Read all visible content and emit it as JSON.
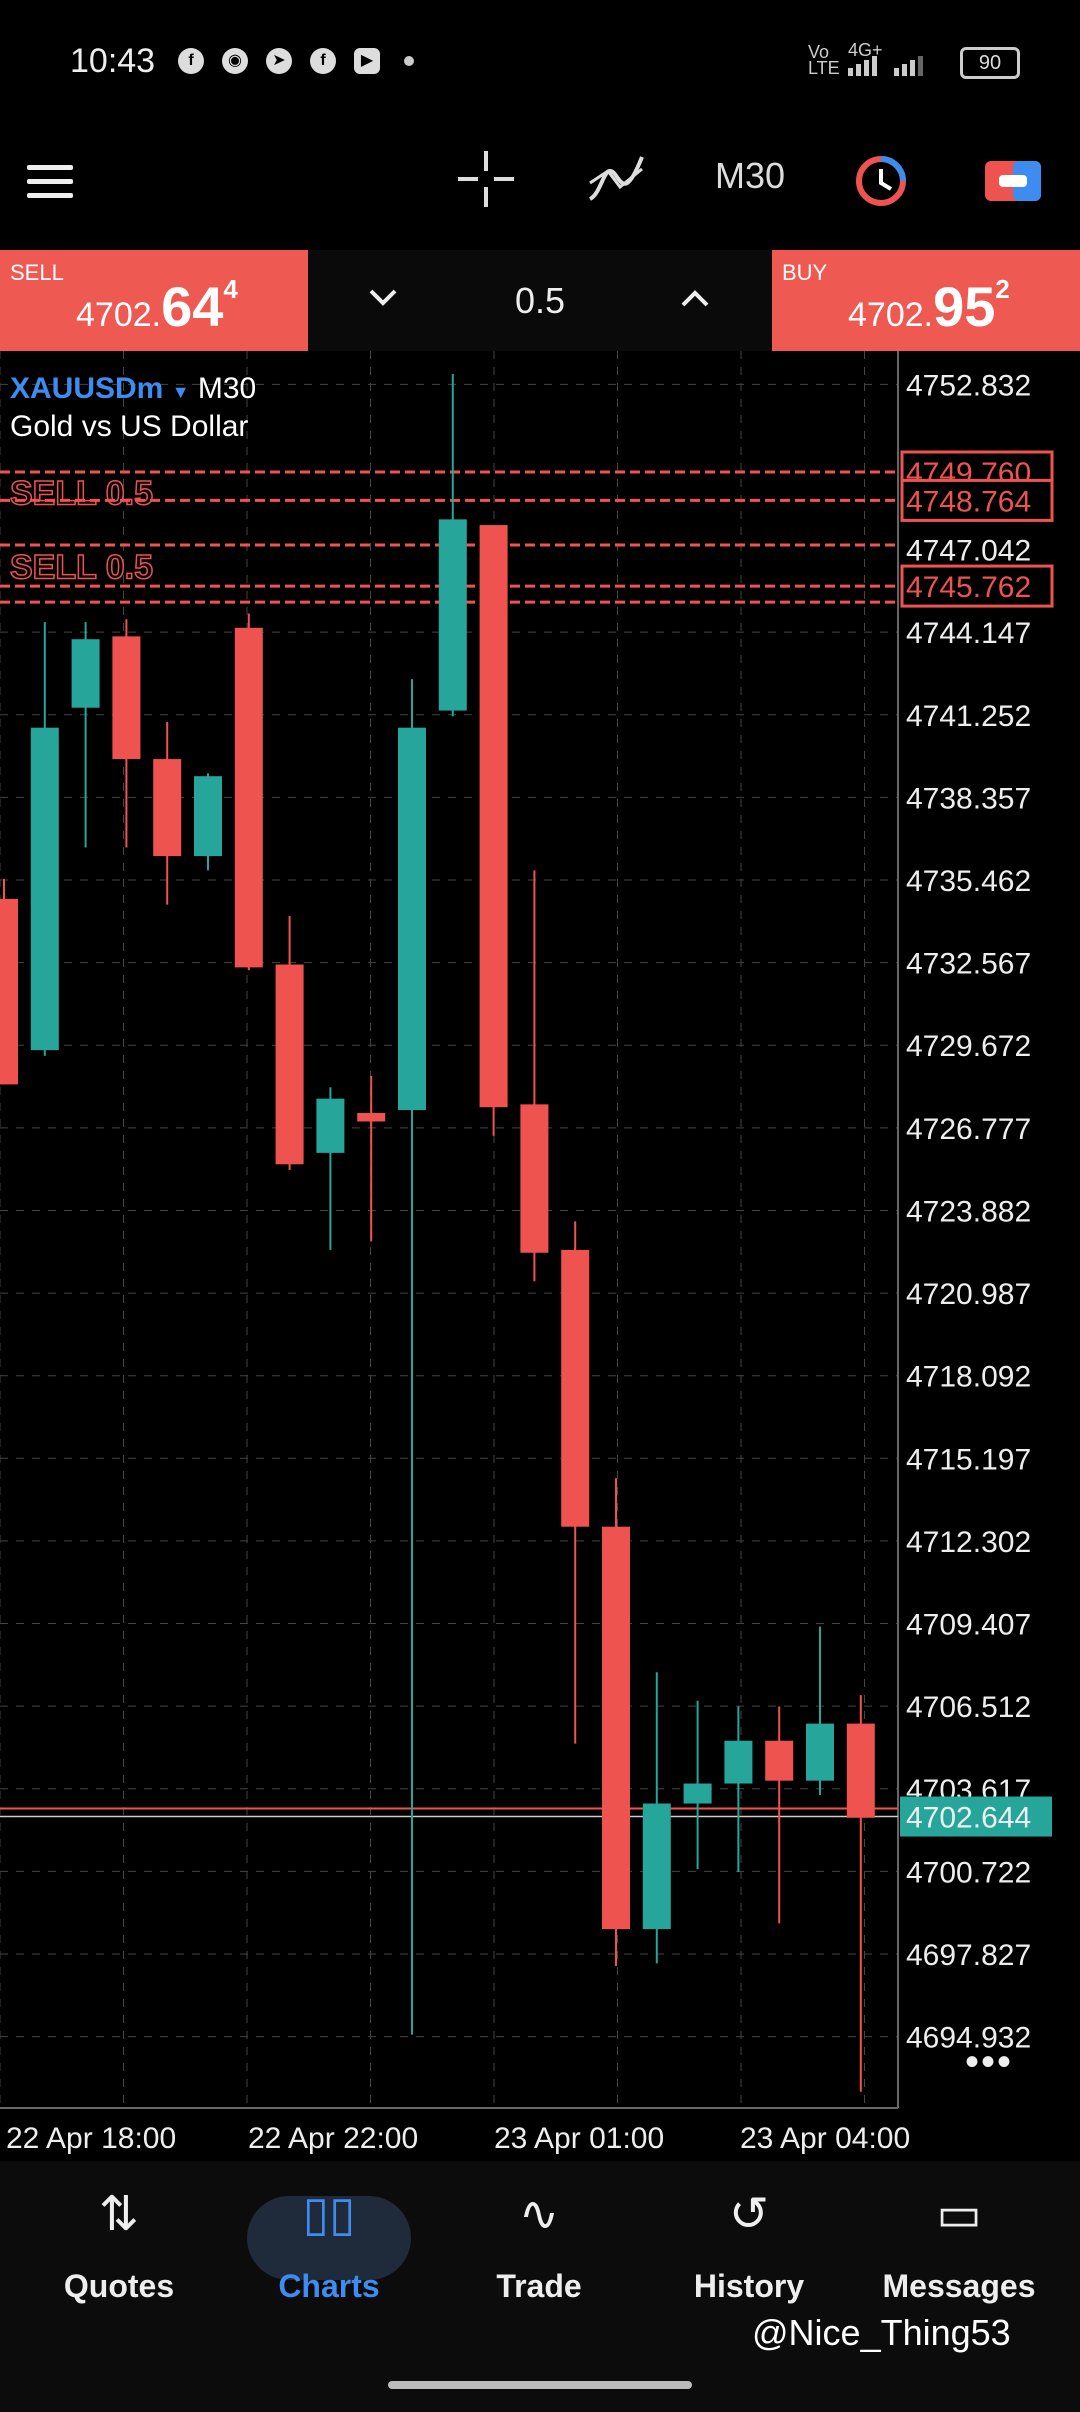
{
  "status_bar": {
    "time": "10:43",
    "battery": "90",
    "net_label": "4G+",
    "app_icons": [
      "facebook-icon",
      "snapchat-icon",
      "telegram-icon",
      "facebook-icon",
      "youtube-icon",
      "dot-icon"
    ]
  },
  "toolbar": {
    "timeframe": "M30",
    "icons": [
      "menu-icon",
      "crosshair-icon",
      "indicators-icon",
      "timeframe",
      "objects-icon",
      "trade-toggle-icon"
    ]
  },
  "trade_bar": {
    "sell_label": "SELL",
    "sell_price_small": "4702.",
    "sell_price_big": "64",
    "sell_price_sup": "4",
    "buy_label": "BUY",
    "buy_price_small": "4702.",
    "buy_price_big": "95",
    "buy_price_sup": "2",
    "lot": "0.5"
  },
  "chart": {
    "symbol": "XAUUSDm",
    "timeframe": "M30",
    "description": "Gold vs US Dollar",
    "current_price": "4702.644",
    "more": "•••",
    "colors": {
      "up": "#26a69a",
      "down": "#ef5350",
      "grid": "#444444",
      "bg": "#000000"
    }
  },
  "chart_data": {
    "type": "candlestick",
    "title": "XAUUSDm M30",
    "ylim": [
      4692.5,
      4754.0
    ],
    "y_ticks": [
      "4752.832",
      "4749.760",
      "4748.764",
      "4747.042",
      "4745.762",
      "4744.147",
      "4741.252",
      "4738.357",
      "4735.462",
      "4732.567",
      "4729.672",
      "4726.777",
      "4723.882",
      "4720.987",
      "4718.092",
      "4715.197",
      "4712.302",
      "4709.407",
      "4706.512",
      "4703.617",
      "4702.644",
      "4700.722",
      "4697.827",
      "4694.932"
    ],
    "x_ticks": [
      "22 Apr 18:00",
      "22 Apr 22:00",
      "23 Apr 01:00",
      "23 Apr 04:00"
    ],
    "order_lines": [
      4749.76,
      4748.764,
      4747.2,
      4745.762,
      4745.2
    ],
    "order_labels": [
      "SELL 0.5",
      "SELL 0.5"
    ],
    "candles": [
      {
        "o": 4734.8,
        "h": 4735.5,
        "l": 4728.3,
        "c": 4728.3
      },
      {
        "o": 4729.5,
        "h": 4744.5,
        "l": 4729.3,
        "c": 4740.8
      },
      {
        "o": 4741.5,
        "h": 4744.5,
        "l": 4736.6,
        "c": 4743.9
      },
      {
        "o": 4744.0,
        "h": 4744.6,
        "l": 4736.6,
        "c": 4739.7
      },
      {
        "o": 4739.7,
        "h": 4741.0,
        "l": 4734.6,
        "c": 4736.3
      },
      {
        "o": 4736.3,
        "h": 4739.2,
        "l": 4735.8,
        "c": 4739.1
      },
      {
        "o": 4744.3,
        "h": 4744.8,
        "l": 4732.3,
        "c": 4732.4
      },
      {
        "o": 4732.5,
        "h": 4734.2,
        "l": 4725.3,
        "c": 4725.5
      },
      {
        "o": 4725.9,
        "h": 4728.2,
        "l": 4722.5,
        "c": 4727.8
      },
      {
        "o": 4727.3,
        "h": 4728.6,
        "l": 4722.8,
        "c": 4727.0
      },
      {
        "o": 4727.4,
        "h": 4742.5,
        "l": 4695.0,
        "c": 4740.8
      },
      {
        "o": 4741.4,
        "h": 4753.2,
        "l": 4741.2,
        "c": 4748.1
      },
      {
        "o": 4747.9,
        "h": 4747.9,
        "l": 4726.5,
        "c": 4727.5
      },
      {
        "o": 4727.6,
        "h": 4735.8,
        "l": 4721.4,
        "c": 4722.4
      },
      {
        "o": 4722.5,
        "h": 4723.5,
        "l": 4705.2,
        "c": 4712.8
      },
      {
        "o": 4712.8,
        "h": 4714.5,
        "l": 4697.4,
        "c": 4698.7
      },
      {
        "o": 4698.7,
        "h": 4707.7,
        "l": 4697.5,
        "c": 4703.1
      },
      {
        "o": 4703.1,
        "h": 4706.7,
        "l": 4700.8,
        "c": 4703.8
      },
      {
        "o": 4703.8,
        "h": 4706.5,
        "l": 4700.7,
        "c": 4705.3
      },
      {
        "o": 4705.3,
        "h": 4706.5,
        "l": 4698.9,
        "c": 4703.9
      },
      {
        "o": 4703.9,
        "h": 4709.3,
        "l": 4703.4,
        "c": 4705.9
      },
      {
        "o": 4705.9,
        "h": 4706.9,
        "l": 4693.0,
        "c": 4702.6
      }
    ]
  },
  "nav": {
    "items": [
      {
        "label": "Quotes",
        "icon": "⇅"
      },
      {
        "label": "Charts",
        "icon": "▯▯"
      },
      {
        "label": "Trade",
        "icon": "∿"
      },
      {
        "label": "History",
        "icon": "↺"
      },
      {
        "label": "Messages",
        "icon": "▭"
      }
    ]
  },
  "watermark": "@Nice_Thing53"
}
